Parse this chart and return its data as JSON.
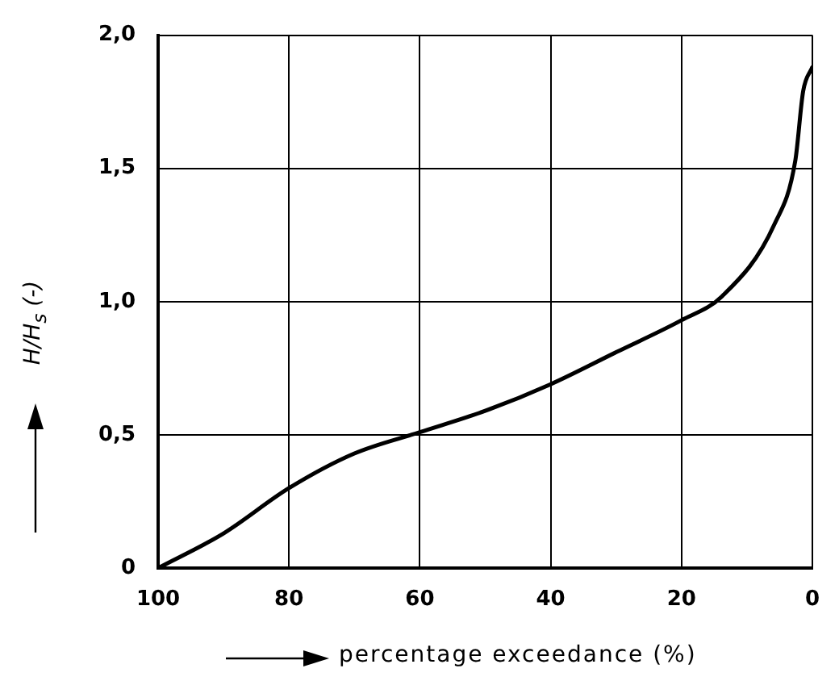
{
  "chart_data": {
    "type": "line",
    "xlabel": "percentage exceedance (%)",
    "ylabel": "H/H$_{s}$ (-)",
    "x": [
      100,
      90,
      80,
      70,
      60,
      50,
      40,
      30,
      20,
      13.8,
      5.8,
      2.6,
      1.4,
      0
    ],
    "series": [
      {
        "color": "#000000",
        "values": [
          0,
          0.13,
          0.3,
          0.43,
          0.51,
          0.59,
          0.69,
          0.81,
          0.93,
          1.02,
          1.29,
          1.53,
          1.79,
          1.88
        ]
      }
    ],
    "xlim": [
      100,
      0
    ],
    "xticks": [
      100,
      80,
      60,
      40,
      20,
      0
    ],
    "ylim": [
      0,
      2
    ],
    "yticks": [
      {
        "value": 0,
        "label": "0"
      },
      {
        "value": 0.5,
        "label": "0,5"
      },
      {
        "value": 1,
        "label": "1,0"
      },
      {
        "value": 1.5,
        "label": "1,5"
      },
      {
        "value": 2,
        "label": "2,0"
      }
    ],
    "grid": true,
    "legend": false,
    "marker": "none",
    "line_style": "solid"
  }
}
